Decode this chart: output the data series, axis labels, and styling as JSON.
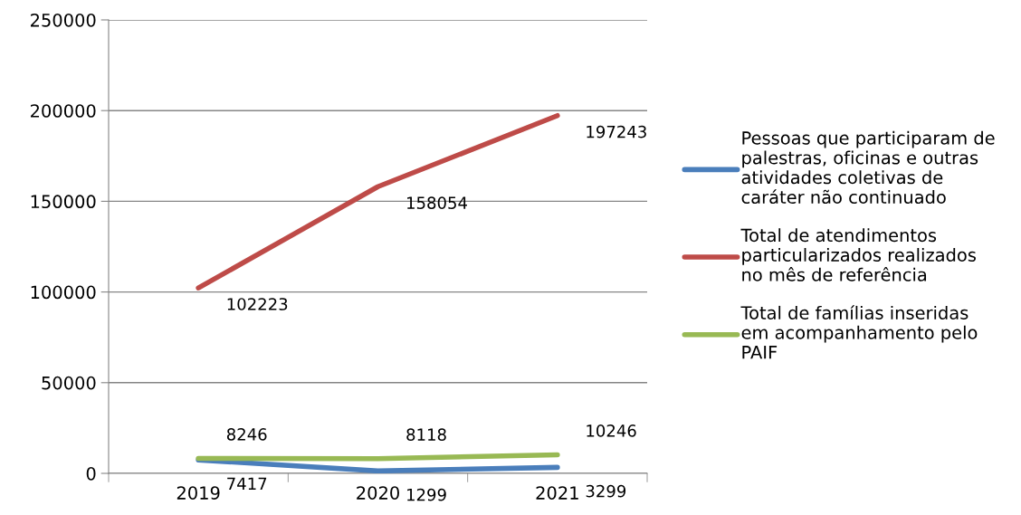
{
  "chart_data": {
    "type": "line",
    "categories": [
      "2019",
      "2020",
      "2021"
    ],
    "series": [
      {
        "name": "Pessoas que participaram de\npalestras, oficinas e outras\natividades coletivas de\ncaráter não continuado",
        "color": "#4a7ebb",
        "values": [
          7417,
          1299,
          3299
        ]
      },
      {
        "name": "Total de atendimentos\nparticularizados realizados\nno mês de referência",
        "color": "#be4b48",
        "values": [
          102223,
          158054,
          197243
        ]
      },
      {
        "name": "Total de famílias inseridas\nem acompanhamento pelo\nPAIF",
        "color": "#98b954",
        "values": [
          8246,
          8118,
          10246
        ]
      }
    ],
    "ylim": [
      0,
      250000
    ],
    "yticks": [
      0,
      50000,
      100000,
      150000,
      200000,
      250000
    ],
    "grid": "y",
    "legend": "right",
    "data_labels": true,
    "marker": "none",
    "line_style": "solid"
  }
}
